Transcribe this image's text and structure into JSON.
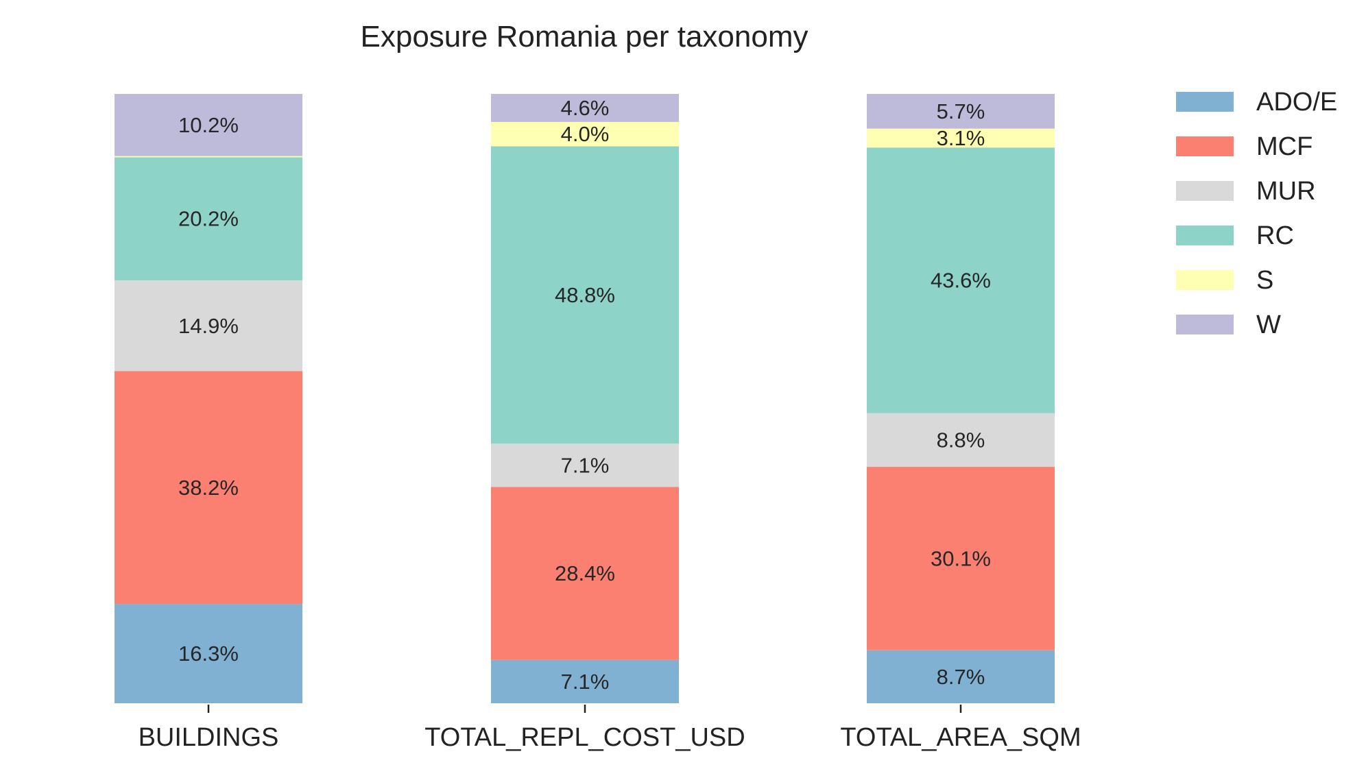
{
  "chart_data": {
    "type": "bar",
    "stacked": true,
    "normalized": true,
    "title": "Exposure Romania per taxonomy",
    "xlabel": "",
    "ylabel": "",
    "ylim": [
      0,
      100
    ],
    "grid": false,
    "legend_position": "right",
    "categories": [
      "BUILDINGS",
      "TOTAL_REPL_COST_USD",
      "TOTAL_AREA_SQM"
    ],
    "series": [
      {
        "name": "ADO/E",
        "color": "#80b1d3",
        "values": [
          16.3,
          7.1,
          8.7
        ],
        "labels": [
          "16.3%",
          "7.1%",
          "8.7%"
        ]
      },
      {
        "name": "MCF",
        "color": "#fb8072",
        "values": [
          38.2,
          28.4,
          30.1
        ],
        "labels": [
          "38.2%",
          "28.4%",
          "30.1%"
        ]
      },
      {
        "name": "MUR",
        "color": "#d9d9d9",
        "values": [
          14.9,
          7.1,
          8.8
        ],
        "labels": [
          "14.9%",
          "7.1%",
          "8.8%"
        ]
      },
      {
        "name": "RC",
        "color": "#8dd3c7",
        "values": [
          20.2,
          48.8,
          43.6
        ],
        "labels": [
          "20.2%",
          "48.8%",
          "43.6%"
        ]
      },
      {
        "name": "S",
        "color": "#ffffb3",
        "values": [
          0.2,
          4.0,
          3.1
        ],
        "labels": [
          "",
          "4.0%",
          "3.1%"
        ]
      },
      {
        "name": "W",
        "color": "#bebada",
        "values": [
          10.2,
          4.6,
          5.7
        ],
        "labels": [
          "10.2%",
          "4.6%",
          "5.7%"
        ]
      }
    ]
  }
}
